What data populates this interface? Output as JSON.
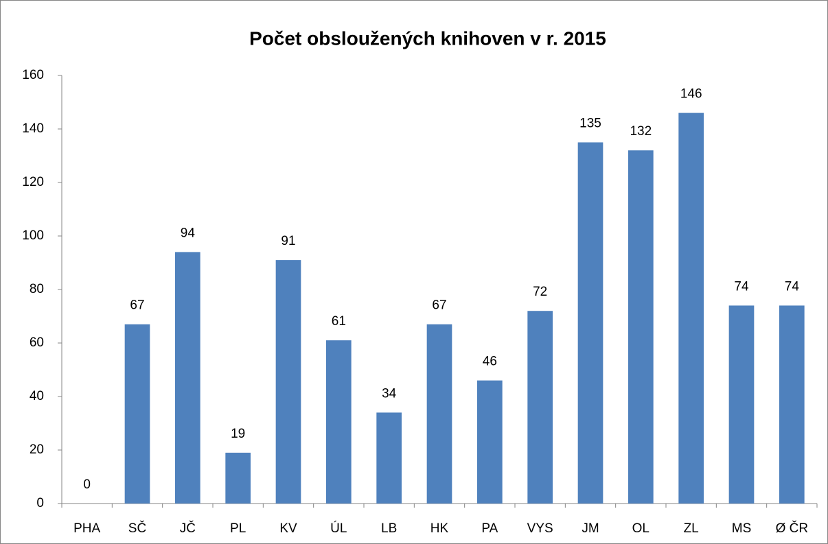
{
  "chart_data": {
    "type": "bar",
    "title": "Počet obsloužených knihoven v r. 2015",
    "categories": [
      "PHA",
      "SČ",
      "JČ",
      "PL",
      "KV",
      "ÚL",
      "LB",
      "HK",
      "PA",
      "VYS",
      "JM",
      "OL",
      "ZL",
      "MS",
      "Ø ČR"
    ],
    "values": [
      0,
      67,
      94,
      19,
      91,
      61,
      34,
      67,
      46,
      72,
      135,
      132,
      146,
      74,
      74
    ],
    "color": "#4f81bd",
    "ylim": [
      0,
      160
    ],
    "yticks": [
      0,
      20,
      40,
      60,
      80,
      100,
      120,
      140,
      160
    ],
    "grid": false,
    "data_labels": true
  }
}
